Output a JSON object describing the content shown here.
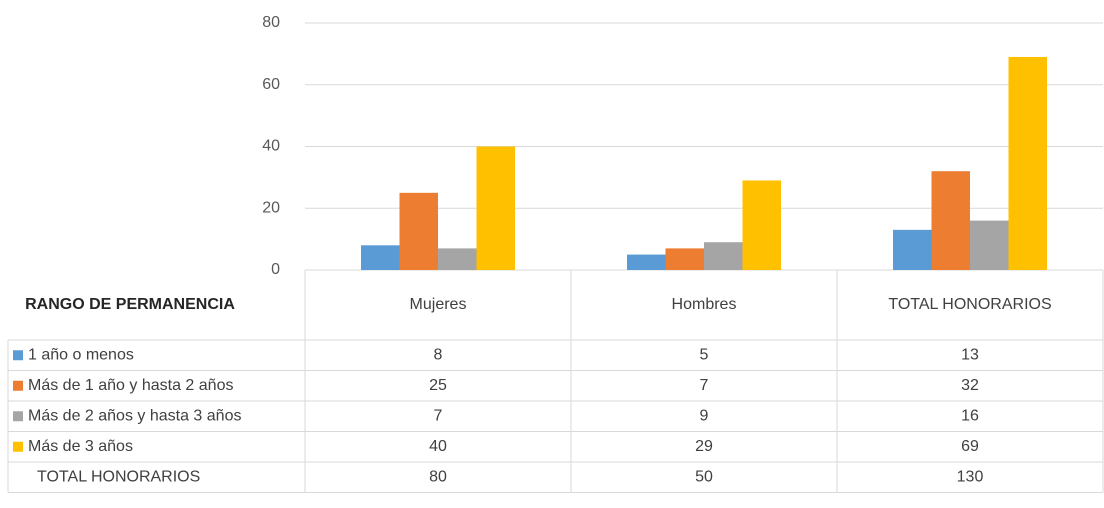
{
  "chart_data": {
    "type": "bar",
    "table_title": "RANGO DE PERMANENCIA",
    "categories": [
      "Mujeres",
      "Hombres",
      "TOTAL HONORARIOS"
    ],
    "series": [
      {
        "name": "1 año o menos",
        "color": "#5b9bd5",
        "values": [
          8,
          5,
          13
        ]
      },
      {
        "name": "Más de 1 año y hasta 2 años",
        "color": "#ed7d31",
        "values": [
          25,
          7,
          32
        ]
      },
      {
        "name": "Más de 2 años y hasta 3 años",
        "color": "#a5a5a5",
        "values": [
          7,
          9,
          16
        ]
      },
      {
        "name": "Más de 3 años",
        "color": "#ffc000",
        "values": [
          40,
          29,
          69
        ]
      }
    ],
    "total_row": {
      "name": "TOTAL HONORARIOS",
      "values": [
        80,
        50,
        130
      ]
    },
    "ylim": [
      0,
      80
    ],
    "yticks": [
      0,
      20,
      40,
      60,
      80
    ],
    "grid": true
  }
}
